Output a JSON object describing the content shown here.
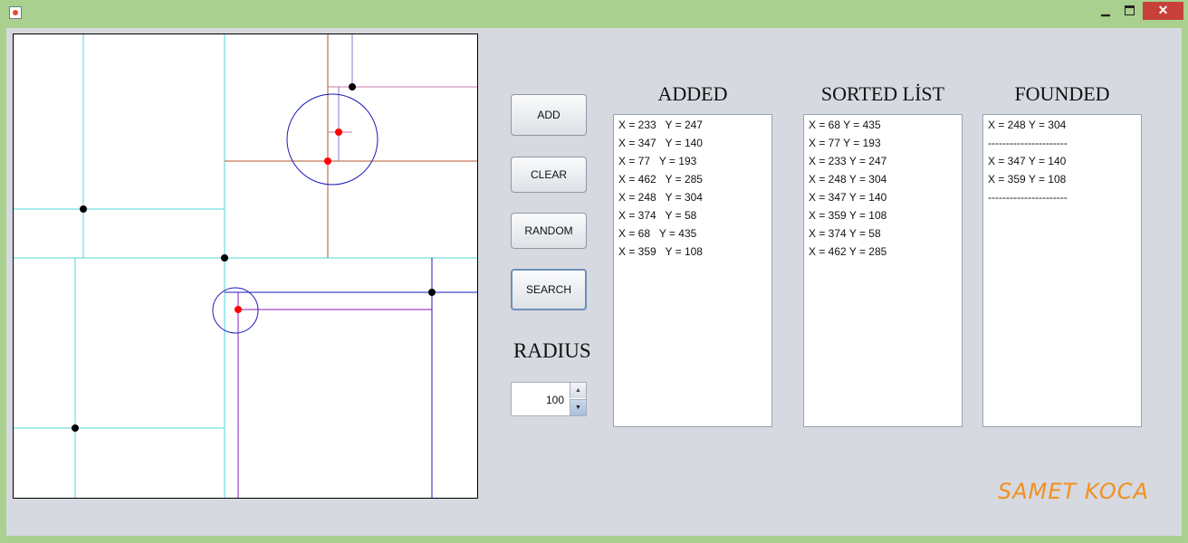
{
  "window": {
    "minimize_glyph": "▁",
    "close_glyph": "✕",
    "icons": {
      "app": "java-cup-icon",
      "minimize": "minimize-icon",
      "maximize": "maximize-icon",
      "close": "close-icon"
    }
  },
  "buttons": {
    "add": "ADD",
    "clear": "CLEAR",
    "random": "RANDOM",
    "search": "SEARCH"
  },
  "radius": {
    "label": "RADIUS",
    "value": "100",
    "up_glyph": "▲",
    "down_glyph": "▼"
  },
  "added": {
    "title": "ADDED",
    "items": [
      "X = 233   Y = 247",
      "X = 347   Y = 140",
      "X = 77   Y = 193",
      "X = 462   Y = 285",
      "X = 248   Y = 304",
      "X = 374   Y = 58",
      "X = 68   Y = 435",
      "X = 359   Y = 108"
    ]
  },
  "sorted": {
    "title": "SORTED LİST",
    "items": [
      "X = 68 Y = 435",
      "X = 77 Y = 193",
      "X = 233 Y = 247",
      "X = 248 Y = 304",
      "X = 347 Y = 140",
      "X = 359 Y = 108",
      "X = 374 Y = 58",
      "X = 462 Y = 285"
    ]
  },
  "founded": {
    "title": "FOUNDED",
    "items": [
      "X = 248 Y = 304",
      "----------------------",
      "X = 347 Y = 140",
      "X = 359 Y = 108",
      "----------------------"
    ]
  },
  "signature": "SAMET KOCA",
  "colors": {
    "titlebar": "#a9d08e",
    "panel": "#d6d9e0",
    "close": "#c7413a",
    "cyan_line": "#4fd6d6",
    "red_line": "#b5532a",
    "blue_line": "#1a1ab8",
    "violet_line": "#8a1ab8",
    "point": "#000000",
    "found_point": "#ff0000",
    "signature": "#f39020"
  }
}
